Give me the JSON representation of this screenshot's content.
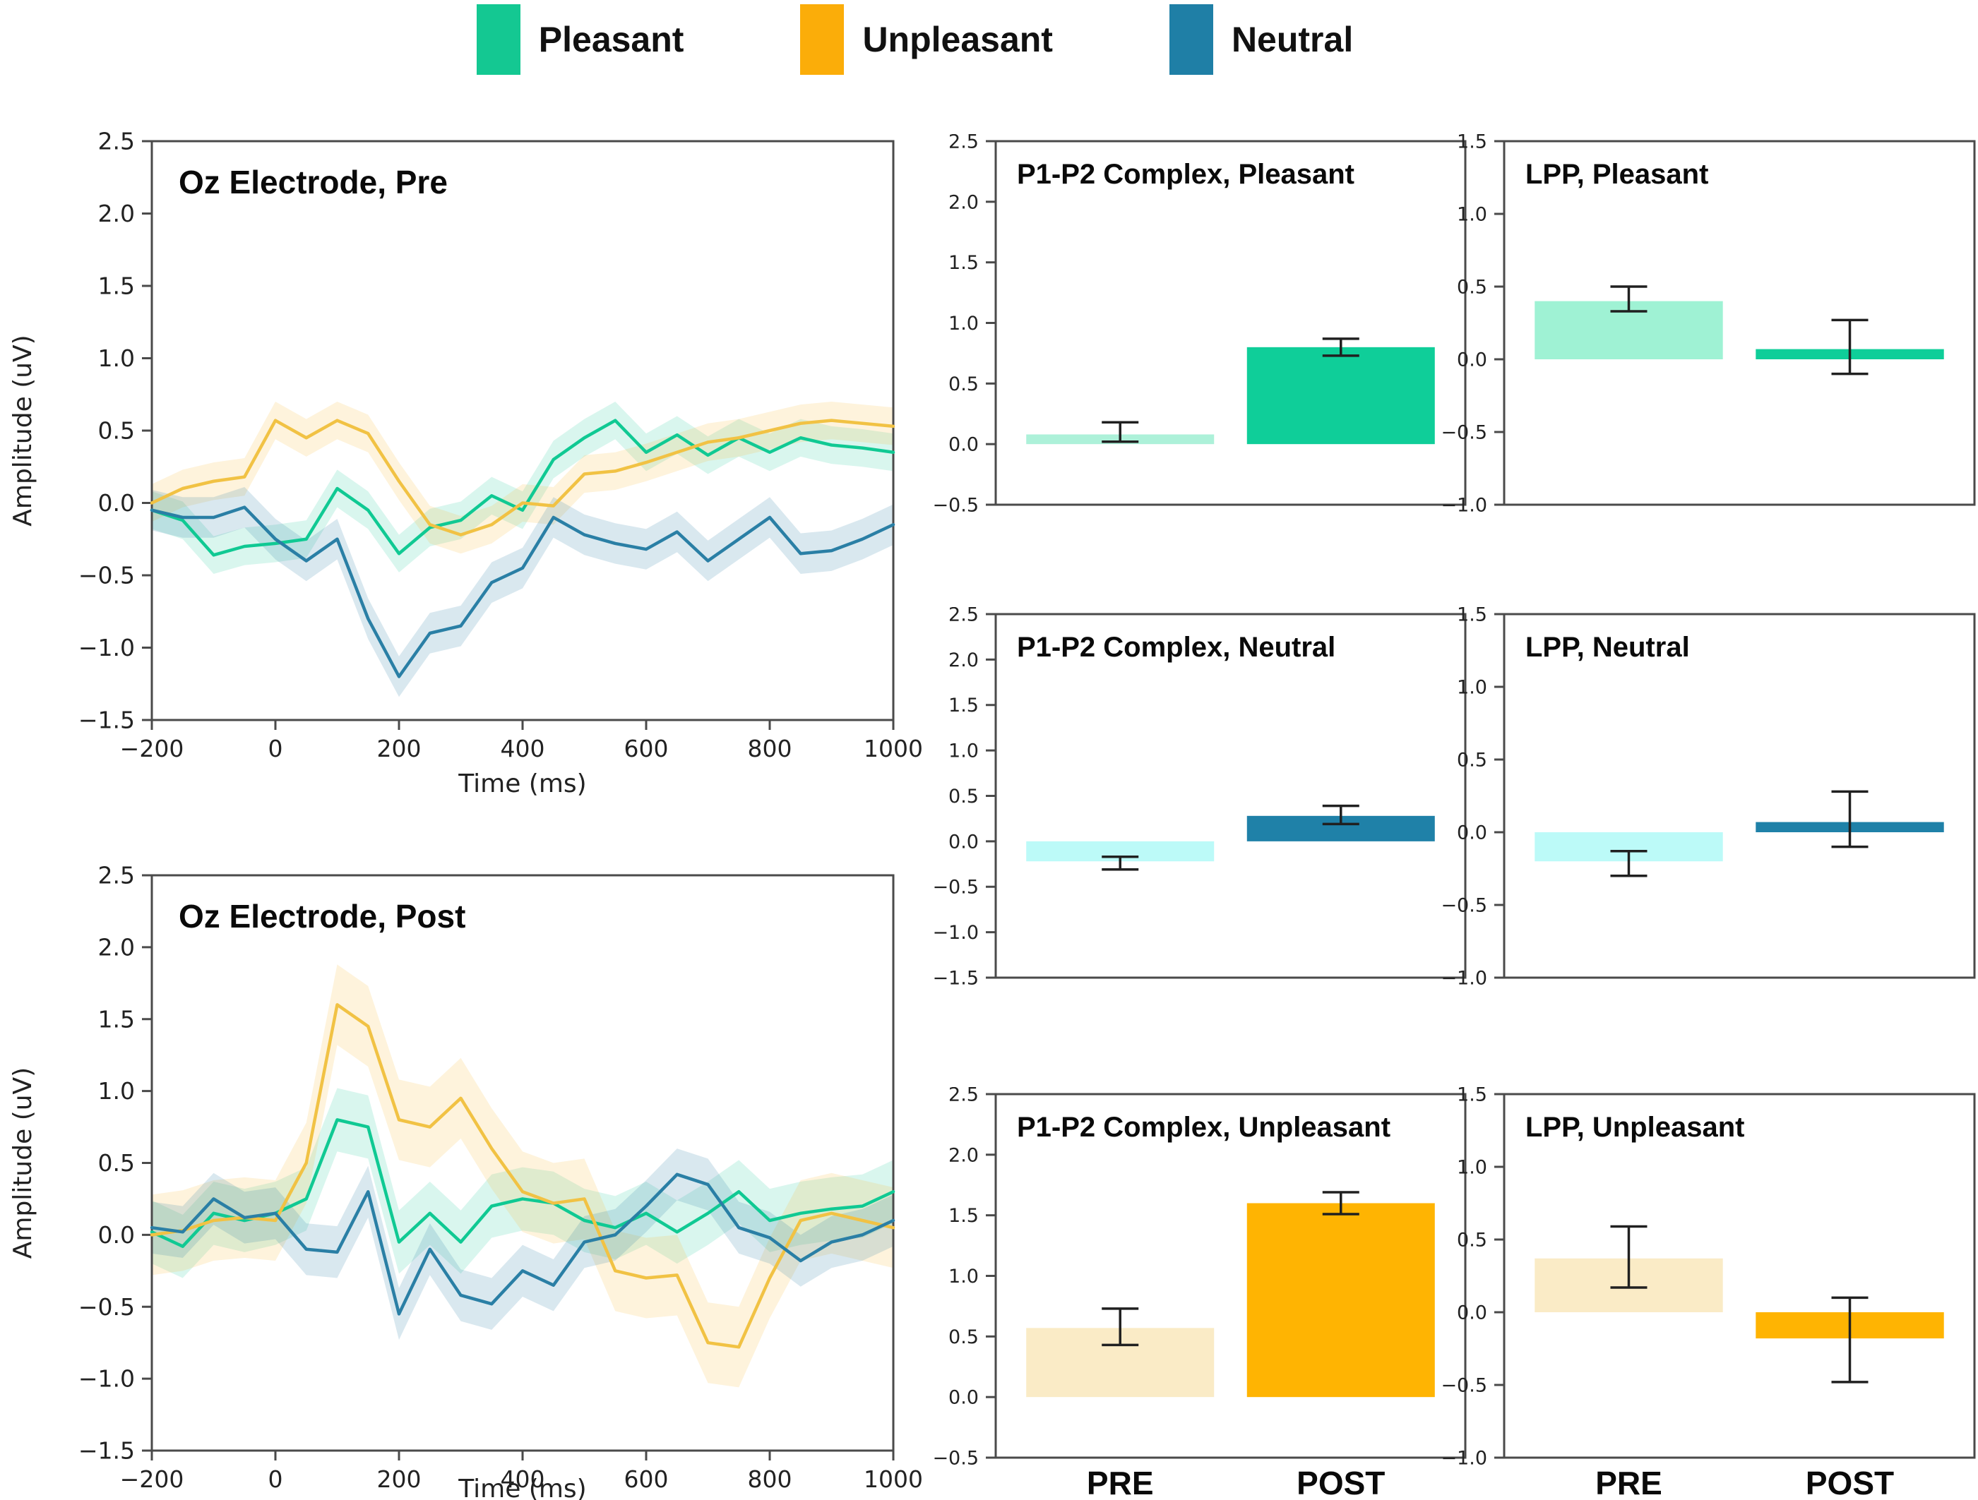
{
  "figure": {
    "description_title_pre": "Oz Electrode, Pre",
    "description_title_post": "Oz Electrode, Post"
  },
  "legend": {
    "position": "top",
    "items": [
      {
        "label": "Pleasant",
        "color": "#14C892"
      },
      {
        "label": "Unpleasant",
        "color": "#FBAD09"
      },
      {
        "label": "Neutral",
        "color": "#1F7FA6"
      }
    ]
  },
  "chart_data": [
    {
      "id": "erp_pre",
      "type": "line",
      "title": "Oz Electrode, Pre",
      "xlabel": "Time (ms)",
      "ylabel": "Amplitude (uV)",
      "xlim": [
        -200,
        1000
      ],
      "ylim": [
        -1.5,
        2.5
      ],
      "xticks": [
        -200,
        0,
        200,
        400,
        600,
        800,
        1000
      ],
      "yticks": [
        -1.5,
        -1.0,
        -0.5,
        0.0,
        0.5,
        1.0,
        1.5,
        2.0,
        2.5
      ],
      "grid": false,
      "x": [
        -200,
        -150,
        -100,
        -50,
        0,
        50,
        100,
        150,
        200,
        250,
        300,
        350,
        400,
        450,
        500,
        550,
        600,
        650,
        700,
        750,
        800,
        850,
        900,
        950,
        1000
      ],
      "series": [
        {
          "name": "Pleasant",
          "color": "#10C993",
          "band_color": "rgba(16,201,147,0.16)",
          "band": 0.13,
          "values": [
            -0.05,
            -0.12,
            -0.36,
            -0.3,
            -0.28,
            -0.25,
            0.1,
            -0.05,
            -0.35,
            -0.17,
            -0.12,
            0.05,
            -0.05,
            0.3,
            0.45,
            0.57,
            0.35,
            0.47,
            0.33,
            0.45,
            0.35,
            0.45,
            0.4,
            0.38,
            0.35
          ]
        },
        {
          "name": "Unpleasant",
          "color": "#F1C244",
          "band_color": "rgba(250,190,60,0.18)",
          "band": 0.13,
          "values": [
            0.0,
            0.1,
            0.15,
            0.18,
            0.57,
            0.45,
            0.57,
            0.48,
            0.15,
            -0.15,
            -0.22,
            -0.15,
            0.0,
            -0.02,
            0.2,
            0.22,
            0.28,
            0.35,
            0.42,
            0.45,
            0.5,
            0.55,
            0.57,
            0.55,
            0.53
          ]
        },
        {
          "name": "Neutral",
          "color": "#2A7FA5",
          "band_color": "rgba(42,127,165,0.18)",
          "band": 0.14,
          "values": [
            -0.05,
            -0.1,
            -0.1,
            -0.03,
            -0.25,
            -0.4,
            -0.25,
            -0.8,
            -1.2,
            -0.9,
            -0.85,
            -0.55,
            -0.45,
            -0.1,
            -0.22,
            -0.28,
            -0.32,
            -0.2,
            -0.4,
            -0.25,
            -0.1,
            -0.35,
            -0.33,
            -0.25,
            -0.15
          ]
        }
      ]
    },
    {
      "id": "erp_post",
      "type": "line",
      "title": "Oz Electrode, Post",
      "xlabel": "Time (ms)",
      "ylabel": "Amplitude (uV)",
      "xlim": [
        -200,
        1000
      ],
      "ylim": [
        -1.5,
        2.5
      ],
      "xticks": [
        -200,
        0,
        200,
        400,
        600,
        800,
        1000
      ],
      "yticks": [
        -1.5,
        -1.0,
        -0.5,
        0.0,
        0.5,
        1.0,
        1.5,
        2.0,
        2.5
      ],
      "grid": false,
      "x": [
        -200,
        -150,
        -100,
        -50,
        0,
        50,
        100,
        150,
        200,
        250,
        300,
        350,
        400,
        450,
        500,
        550,
        600,
        650,
        700,
        750,
        800,
        850,
        900,
        950,
        1000
      ],
      "series": [
        {
          "name": "Pleasant",
          "color": "#10C993",
          "band_color": "rgba(16,201,147,0.16)",
          "band": 0.22,
          "values": [
            0.02,
            -0.08,
            0.15,
            0.1,
            0.15,
            0.25,
            0.8,
            0.75,
            -0.05,
            0.15,
            -0.05,
            0.2,
            0.25,
            0.22,
            0.1,
            0.05,
            0.15,
            0.02,
            0.15,
            0.3,
            0.1,
            0.15,
            0.18,
            0.2,
            0.3
          ]
        },
        {
          "name": "Unpleasant",
          "color": "#F1C244",
          "band_color": "rgba(250,190,60,0.18)",
          "band": 0.28,
          "values": [
            0.0,
            0.03,
            0.1,
            0.12,
            0.1,
            0.5,
            1.6,
            1.45,
            0.8,
            0.75,
            0.95,
            0.6,
            0.3,
            0.22,
            0.25,
            -0.25,
            -0.3,
            -0.28,
            -0.75,
            -0.78,
            -0.3,
            0.1,
            0.15,
            0.1,
            0.05
          ]
        },
        {
          "name": "Neutral",
          "color": "#2A7FA5",
          "band_color": "rgba(42,127,165,0.18)",
          "band": 0.18,
          "values": [
            0.05,
            0.02,
            0.25,
            0.12,
            0.15,
            -0.1,
            -0.12,
            0.3,
            -0.55,
            -0.1,
            -0.42,
            -0.48,
            -0.25,
            -0.35,
            -0.05,
            0.0,
            0.2,
            0.42,
            0.35,
            0.05,
            -0.02,
            -0.18,
            -0.05,
            0.0,
            0.1
          ]
        }
      ]
    },
    {
      "id": "p1p2_pleasant",
      "type": "bar",
      "title": "P1-P2 Complex, Pleasant",
      "categories": [
        "PRE",
        "POST"
      ],
      "values": [
        0.08,
        0.8
      ],
      "errors": [
        [
          0.02,
          0.18
        ],
        [
          0.73,
          0.87
        ]
      ],
      "colors": [
        "#ADF1D9",
        "#0FCE99"
      ],
      "ylim": [
        -0.5,
        2.5
      ],
      "yticks": [
        -0.5,
        0.0,
        0.5,
        1.0,
        1.5,
        2.0,
        2.5
      ],
      "show_xlabels": false
    },
    {
      "id": "lpp_pleasant",
      "type": "bar",
      "title": "LPP, Pleasant",
      "categories": [
        "PRE",
        "POST"
      ],
      "values": [
        0.4,
        0.07
      ],
      "errors": [
        [
          0.33,
          0.5
        ],
        [
          -0.1,
          0.27
        ]
      ],
      "colors": [
        "#9FF2D4",
        "#0FCE99"
      ],
      "ylim": [
        -1.0,
        1.5
      ],
      "yticks": [
        -1.0,
        -0.5,
        0.0,
        0.5,
        1.0,
        1.5
      ],
      "show_xlabels": false
    },
    {
      "id": "p1p2_neutral",
      "type": "bar",
      "title": "P1-P2 Complex, Neutral",
      "categories": [
        "PRE",
        "POST"
      ],
      "values": [
        -0.22,
        0.28
      ],
      "errors": [
        [
          -0.31,
          -0.17
        ],
        [
          0.19,
          0.39
        ]
      ],
      "colors": [
        "#BCFAF8",
        "#1F81A8"
      ],
      "ylim": [
        -1.5,
        2.5
      ],
      "yticks": [
        -1.5,
        -1.0,
        -0.5,
        0.0,
        0.5,
        1.0,
        1.5,
        2.0,
        2.5
      ],
      "show_xlabels": false
    },
    {
      "id": "lpp_neutral",
      "type": "bar",
      "title": "LPP, Neutral",
      "categories": [
        "PRE",
        "POST"
      ],
      "values": [
        -0.2,
        0.07
      ],
      "errors": [
        [
          -0.3,
          -0.13
        ],
        [
          -0.1,
          0.28
        ]
      ],
      "colors": [
        "#BCFAF8",
        "#1F81A8"
      ],
      "ylim": [
        -1.0,
        1.5
      ],
      "yticks": [
        -1.0,
        -0.5,
        0.0,
        0.5,
        1.0,
        1.5
      ],
      "show_xlabels": false
    },
    {
      "id": "p1p2_unpleasant",
      "type": "bar",
      "title": "P1-P2 Complex, Unpleasant",
      "categories": [
        "PRE",
        "POST"
      ],
      "values": [
        0.57,
        1.6
      ],
      "errors": [
        [
          0.43,
          0.73
        ],
        [
          1.51,
          1.69
        ]
      ],
      "colors": [
        "#FAEBC6",
        "#FFB402"
      ],
      "ylim": [
        -0.5,
        2.5
      ],
      "yticks": [
        -0.5,
        0.0,
        0.5,
        1.0,
        1.5,
        2.0,
        2.5
      ],
      "show_xlabels": true
    },
    {
      "id": "lpp_unpleasant",
      "type": "bar",
      "title": "LPP, Unpleasant",
      "categories": [
        "PRE",
        "POST"
      ],
      "values": [
        0.37,
        -0.18
      ],
      "errors": [
        [
          0.17,
          0.59
        ],
        [
          -0.48,
          0.1
        ]
      ],
      "colors": [
        "#FAEBC6",
        "#FFB402"
      ],
      "ylim": [
        -1.0,
        1.5
      ],
      "yticks": [
        -1.0,
        -0.5,
        0.0,
        0.5,
        1.0,
        1.5
      ],
      "show_xlabels": true
    }
  ]
}
